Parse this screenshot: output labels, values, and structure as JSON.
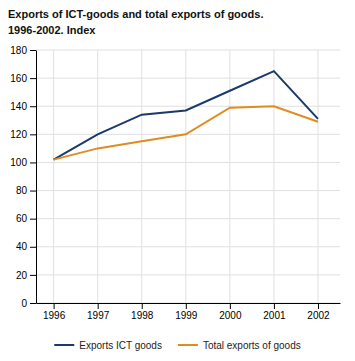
{
  "chart_data": {
    "type": "line",
    "title": "Exports of ICT-goods and total exports of goods.",
    "subtitle": "1996-2002. Index",
    "x": [
      1996,
      1997,
      1998,
      1999,
      2000,
      2001,
      2002
    ],
    "series": [
      {
        "name": "Exports ICT goods",
        "color": "#1a3a6b",
        "values": [
          102,
          120,
          134,
          137,
          151,
          165,
          131
        ]
      },
      {
        "name": "Total exports of goods",
        "color": "#e08c20",
        "values": [
          102,
          110,
          115,
          120,
          139,
          140,
          129
        ]
      }
    ],
    "xlim": [
      1995.6,
      2002.5
    ],
    "xticks": [
      1996,
      1997,
      1998,
      1999,
      2000,
      2001,
      2002
    ],
    "ylim": [
      0,
      180
    ],
    "yticks": [
      0,
      20,
      40,
      60,
      80,
      100,
      120,
      140,
      160,
      180
    ],
    "grid": true,
    "legend": "bottom"
  }
}
